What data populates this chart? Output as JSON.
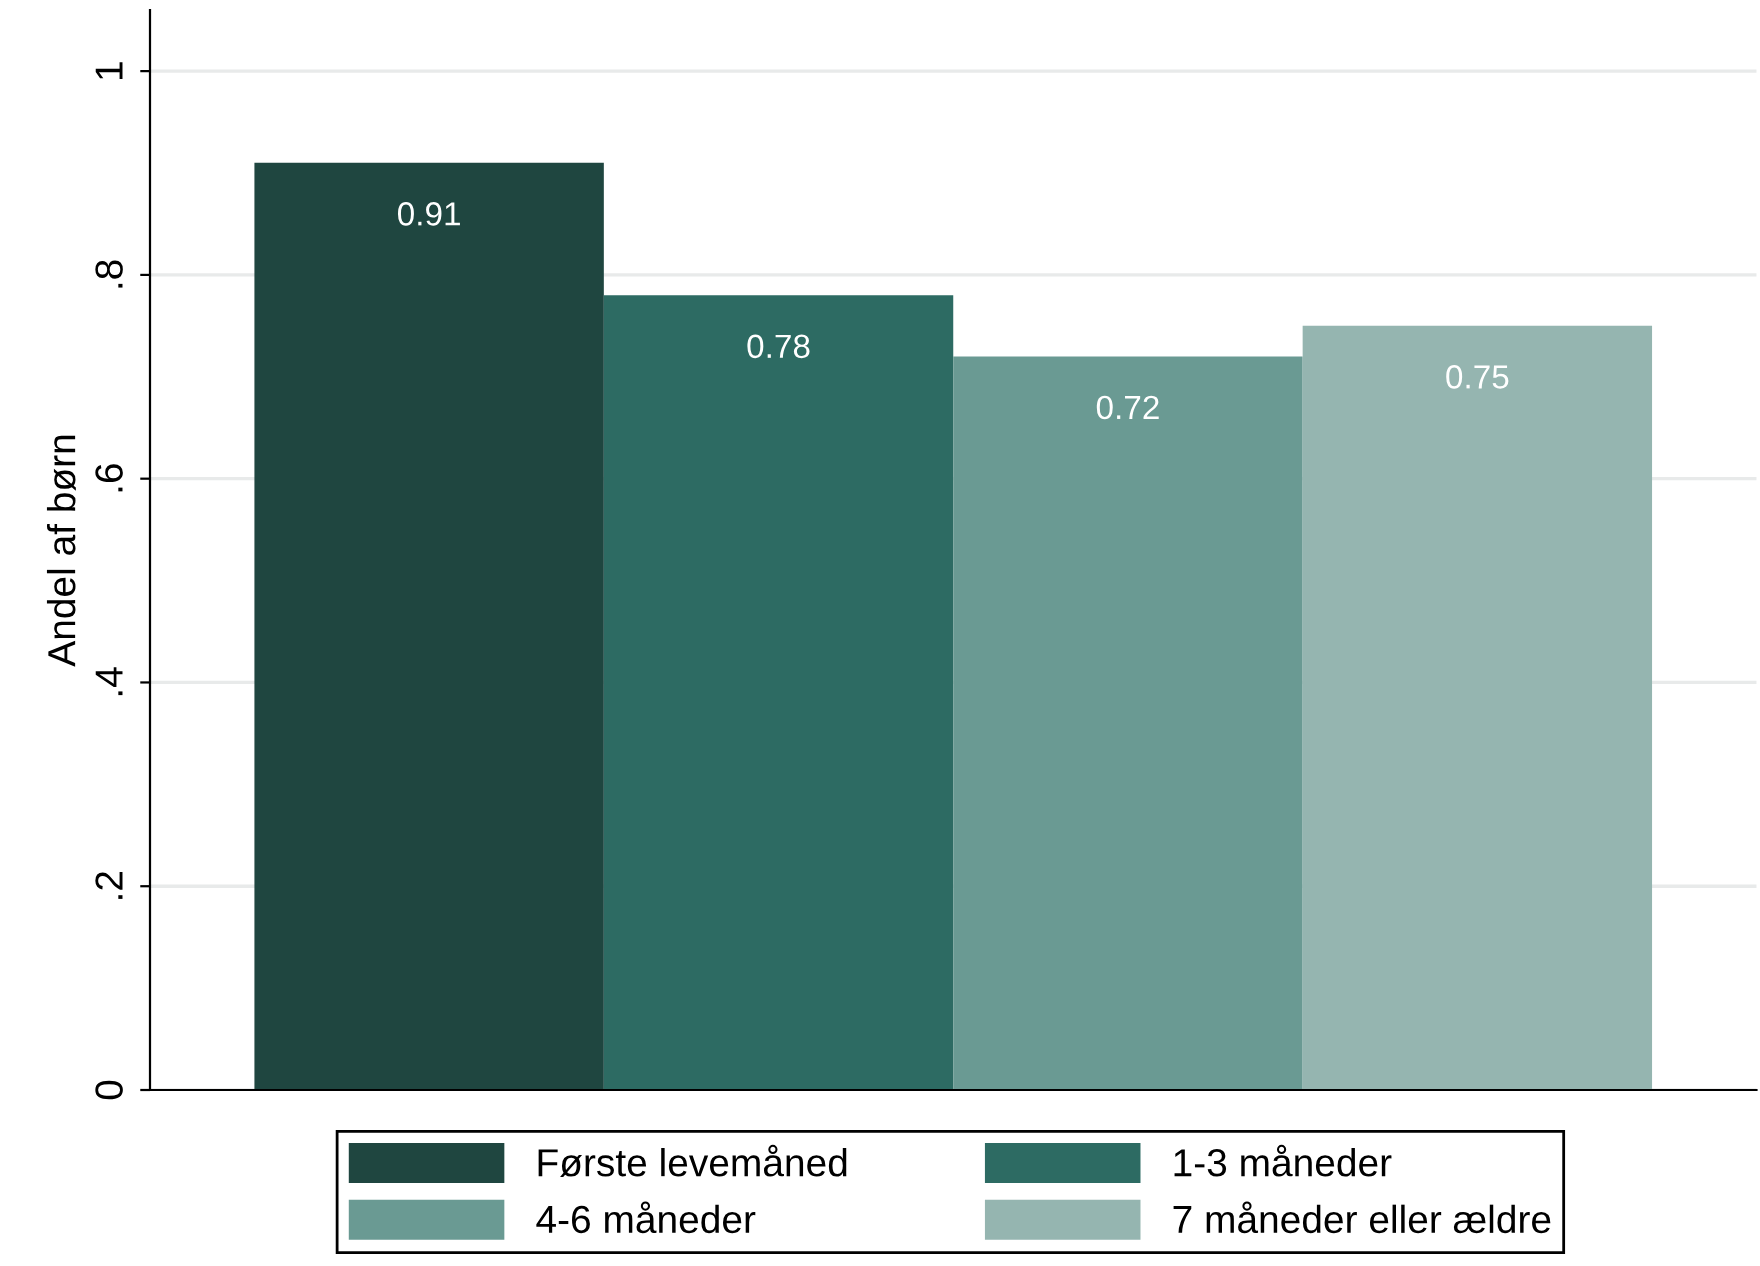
{
  "chart_data": {
    "type": "bar",
    "ylabel": "Andel af børn",
    "categories": [
      null
    ],
    "series": [
      {
        "name": "Første levemåned",
        "color": "#1f4640",
        "values": [
          0.91
        ]
      },
      {
        "name": "1-3 måneder",
        "color": "#2d6b63",
        "values": [
          0.78
        ]
      },
      {
        "name": "4-6 måneder",
        "color": "#6a9a93",
        "values": [
          0.72
        ]
      },
      {
        "name": "7 måneder eller ældre",
        "color": "#95b5b0",
        "values": [
          0.75
        ]
      }
    ],
    "ylim": [
      0,
      1.06
    ],
    "yticks": [
      0,
      {
        "value": 0.2,
        "label": ".2"
      },
      {
        "value": 0.4,
        "label": ".4"
      },
      {
        "value": 0.6,
        "label": ".6"
      },
      {
        "value": 0.8,
        "label": ".8"
      },
      1
    ],
    "grid": "y",
    "data_labels": true,
    "legend": "bottom"
  }
}
